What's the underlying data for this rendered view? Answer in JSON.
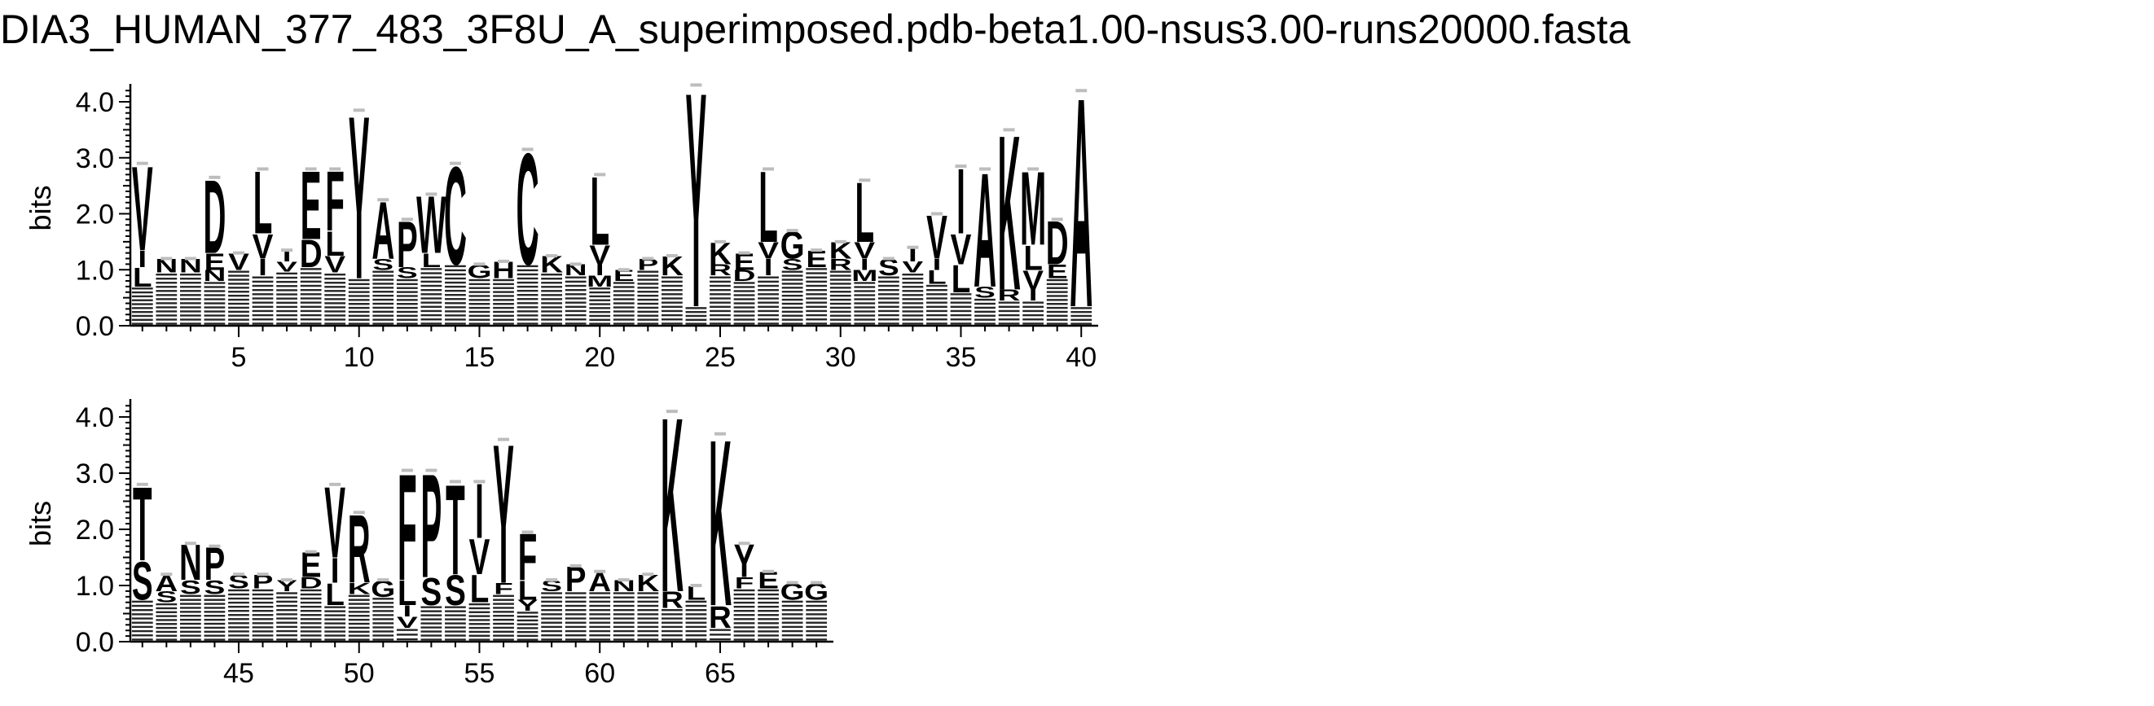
{
  "title": "DIA3_HUMAN_377_483_3F8U_A_superimposed.pdb-beta1.00-nsus3.00-runs20000.fasta",
  "chart_data": {
    "type": "sequence-logo",
    "ylabel": "bits",
    "ylim": [
      0,
      4.32
    ],
    "yticks": [
      "0.0",
      "1.0",
      "2.0",
      "3.0",
      "4.0"
    ],
    "panels": [
      {
        "positions": [
          1,
          40
        ],
        "xticks": [
          5,
          10,
          15,
          20,
          25,
          30,
          35,
          40
        ],
        "columns": [
          {
            "pos": 1,
            "total": 2.9,
            "letters": [
              [
                "V",
                1.55
              ],
              [
                "I",
                0.3
              ],
              [
                "L",
                0.35
              ]
            ]
          },
          {
            "pos": 2,
            "total": 1.2,
            "letters": [
              [
                "N",
                0.25
              ]
            ]
          },
          {
            "pos": 3,
            "total": 1.2,
            "letters": [
              [
                "N",
                0.25
              ]
            ]
          },
          {
            "pos": 4,
            "total": 2.65,
            "letters": [
              [
                "D",
                1.35
              ],
              [
                "E",
                0.3
              ],
              [
                "N",
                0.2
              ]
            ]
          },
          {
            "pos": 5,
            "total": 1.3,
            "letters": [
              [
                "V",
                0.3
              ]
            ]
          },
          {
            "pos": 6,
            "total": 2.8,
            "letters": [
              [
                "L",
                1.15
              ],
              [
                "V",
                0.45
              ],
              [
                "I",
                0.3
              ]
            ]
          },
          {
            "pos": 7,
            "total": 1.35,
            "letters": [
              [
                "I",
                0.2
              ],
              [
                "V",
                0.18
              ]
            ]
          },
          {
            "pos": 8,
            "total": 2.8,
            "letters": [
              [
                "E",
                1.25
              ],
              [
                "D",
                0.5
              ]
            ]
          },
          {
            "pos": 9,
            "total": 2.8,
            "letters": [
              [
                "F",
                1.1
              ],
              [
                "L",
                0.45
              ],
              [
                "V",
                0.3
              ]
            ]
          },
          {
            "pos": 10,
            "total": 3.85,
            "letters": [
              [
                "Y",
                3.0
              ]
            ]
          },
          {
            "pos": 11,
            "total": 2.25,
            "letters": [
              [
                "A",
                1.05
              ],
              [
                "S",
                0.2
              ]
            ]
          },
          {
            "pos": 12,
            "total": 1.9,
            "letters": [
              [
                "P",
                0.85
              ],
              [
                "S",
                0.2
              ]
            ]
          },
          {
            "pos": 13,
            "total": 2.35,
            "letters": [
              [
                "W",
                1.05
              ],
              [
                "L",
                0.25
              ]
            ]
          },
          {
            "pos": 14,
            "total": 2.9,
            "letters": [
              [
                "C",
                1.8
              ]
            ]
          },
          {
            "pos": 15,
            "total": 1.1,
            "letters": [
              [
                "G",
                0.25
              ]
            ]
          },
          {
            "pos": 16,
            "total": 1.15,
            "letters": [
              [
                "H",
                0.3
              ]
            ]
          },
          {
            "pos": 17,
            "total": 3.15,
            "letters": [
              [
                "C",
                2.05
              ]
            ]
          },
          {
            "pos": 18,
            "total": 1.25,
            "letters": [
              [
                "K",
                0.3
              ]
            ]
          },
          {
            "pos": 19,
            "total": 1.1,
            "letters": [
              [
                "N",
                0.2
              ]
            ]
          },
          {
            "pos": 20,
            "total": 2.7,
            "letters": [
              [
                "L",
                1.25
              ],
              [
                "V",
                0.35
              ],
              [
                "I",
                0.2
              ],
              [
                "M",
                0.2
              ]
            ]
          },
          {
            "pos": 21,
            "total": 1.0,
            "letters": [
              [
                "E",
                0.2
              ]
            ]
          },
          {
            "pos": 22,
            "total": 1.2,
            "letters": [
              [
                "P",
                0.2
              ]
            ]
          },
          {
            "pos": 23,
            "total": 1.25,
            "letters": [
              [
                "K",
                0.35
              ]
            ]
          },
          {
            "pos": 24,
            "total": 4.3,
            "letters": [
              [
                "Y",
                3.95
              ]
            ]
          },
          {
            "pos": 25,
            "total": 1.5,
            "letters": [
              [
                "K",
                0.4
              ],
              [
                "R",
                0.2
              ]
            ]
          },
          {
            "pos": 26,
            "total": 1.3,
            "letters": [
              [
                "E",
                0.3
              ],
              [
                "D",
                0.2
              ]
            ]
          },
          {
            "pos": 27,
            "total": 2.8,
            "letters": [
              [
                "L",
                1.3
              ],
              [
                "V",
                0.3
              ],
              [
                "I",
                0.3
              ]
            ]
          },
          {
            "pos": 28,
            "total": 1.7,
            "letters": [
              [
                "G",
                0.5
              ],
              [
                "S",
                0.2
              ]
            ]
          },
          {
            "pos": 29,
            "total": 1.35,
            "letters": [
              [
                "E",
                0.3
              ]
            ]
          },
          {
            "pos": 30,
            "total": 1.5,
            "letters": [
              [
                "K",
                0.3
              ],
              [
                "R",
                0.2
              ]
            ]
          },
          {
            "pos": 31,
            "total": 2.6,
            "letters": [
              [
                "L",
                1.1
              ],
              [
                "V",
                0.3
              ],
              [
                "I",
                0.2
              ],
              [
                "M",
                0.2
              ]
            ]
          },
          {
            "pos": 32,
            "total": 1.2,
            "letters": [
              [
                "S",
                0.3
              ]
            ]
          },
          {
            "pos": 33,
            "total": 1.4,
            "letters": [
              [
                "I",
                0.25
              ],
              [
                "V",
                0.2
              ]
            ]
          },
          {
            "pos": 34,
            "total": 2.0,
            "letters": [
              [
                "V",
                0.8
              ],
              [
                "I",
                0.2
              ],
              [
                "L",
                0.25
              ]
            ]
          },
          {
            "pos": 35,
            "total": 2.85,
            "letters": [
              [
                "I",
                1.2
              ],
              [
                "V",
                0.55
              ],
              [
                "L",
                0.5
              ]
            ]
          },
          {
            "pos": 36,
            "total": 2.8,
            "letters": [
              [
                "A",
                2.1
              ],
              [
                "S",
                0.2
              ]
            ]
          },
          {
            "pos": 37,
            "total": 3.5,
            "letters": [
              [
                "K",
                2.85
              ],
              [
                "R",
                0.2
              ]
            ]
          },
          {
            "pos": 38,
            "total": 2.8,
            "letters": [
              [
                "M",
                1.35
              ],
              [
                "L",
                0.45
              ],
              [
                "V",
                0.35
              ],
              [
                "I",
                0.2
              ]
            ]
          },
          {
            "pos": 39,
            "total": 1.9,
            "letters": [
              [
                "D",
                0.8
              ],
              [
                "E",
                0.25
              ]
            ]
          },
          {
            "pos": 40,
            "total": 4.2,
            "letters": [
              [
                "A",
                3.85
              ]
            ]
          }
        ]
      },
      {
        "positions": [
          41,
          69
        ],
        "xticks": [
          45,
          50,
          55,
          60,
          65
        ],
        "columns": [
          {
            "pos": 41,
            "total": 2.8,
            "letters": [
              [
                "T",
                1.35
              ],
              [
                "S",
                0.7
              ]
            ]
          },
          {
            "pos": 42,
            "total": 1.2,
            "letters": [
              [
                "A",
                0.3
              ],
              [
                "S",
                0.2
              ]
            ]
          },
          {
            "pos": 43,
            "total": 1.75,
            "letters": [
              [
                "N",
                0.65
              ],
              [
                "S",
                0.25
              ]
            ]
          },
          {
            "pos": 44,
            "total": 1.7,
            "letters": [
              [
                "P",
                0.6
              ],
              [
                "S",
                0.25
              ]
            ]
          },
          {
            "pos": 45,
            "total": 1.2,
            "letters": [
              [
                "S",
                0.25
              ]
            ]
          },
          {
            "pos": 46,
            "total": 1.2,
            "letters": [
              [
                "P",
                0.25
              ]
            ]
          },
          {
            "pos": 47,
            "total": 1.1,
            "letters": [
              [
                "Y",
                0.2
              ]
            ]
          },
          {
            "pos": 48,
            "total": 1.6,
            "letters": [
              [
                "E",
                0.45
              ],
              [
                "D",
                0.2
              ]
            ]
          },
          {
            "pos": 49,
            "total": 2.8,
            "letters": [
              [
                "V",
                1.3
              ],
              [
                "I",
                0.45
              ],
              [
                "L",
                0.4
              ]
            ]
          },
          {
            "pos": 50,
            "total": 2.3,
            "letters": [
              [
                "R",
                1.25
              ],
              [
                "K",
                0.2
              ]
            ]
          },
          {
            "pos": 51,
            "total": 1.1,
            "letters": [
              [
                "G",
                0.3
              ]
            ]
          },
          {
            "pos": 52,
            "total": 3.05,
            "letters": [
              [
                "F",
                1.95
              ],
              [
                "L",
                0.45
              ],
              [
                "I",
                0.2
              ],
              [
                "V",
                0.2
              ]
            ]
          },
          {
            "pos": 53,
            "total": 3.05,
            "letters": [
              [
                "P",
                1.9
              ],
              [
                "S",
                0.5
              ]
            ]
          },
          {
            "pos": 54,
            "total": 2.85,
            "letters": [
              [
                "T",
                1.65
              ],
              [
                "S",
                0.55
              ]
            ]
          },
          {
            "pos": 55,
            "total": 2.85,
            "letters": [
              [
                "I",
                1.0
              ],
              [
                "V",
                0.65
              ],
              [
                "L",
                0.5
              ]
            ]
          },
          {
            "pos": 56,
            "total": 3.6,
            "letters": [
              [
                "Y",
                2.55
              ],
              [
                "F",
                0.2
              ]
            ]
          },
          {
            "pos": 57,
            "total": 1.95,
            "letters": [
              [
                "F",
                0.85
              ],
              [
                "L",
                0.35
              ],
              [
                "Y",
                0.2
              ]
            ]
          },
          {
            "pos": 58,
            "total": 1.1,
            "letters": [
              [
                "S",
                0.2
              ]
            ]
          },
          {
            "pos": 59,
            "total": 1.35,
            "letters": [
              [
                "P",
                0.45
              ]
            ]
          },
          {
            "pos": 60,
            "total": 1.25,
            "letters": [
              [
                "A",
                0.35
              ]
            ]
          },
          {
            "pos": 61,
            "total": 1.1,
            "letters": [
              [
                "N",
                0.2
              ]
            ]
          },
          {
            "pos": 62,
            "total": 1.2,
            "letters": [
              [
                "K",
                0.3
              ]
            ]
          },
          {
            "pos": 63,
            "total": 4.1,
            "letters": [
              [
                "K",
                3.2
              ],
              [
                "R",
                0.3
              ]
            ]
          },
          {
            "pos": 64,
            "total": 1.0,
            "letters": [
              [
                "L",
                0.25
              ]
            ]
          },
          {
            "pos": 65,
            "total": 3.7,
            "letters": [
              [
                "K",
                3.05
              ],
              [
                "R",
                0.4
              ]
            ]
          },
          {
            "pos": 66,
            "total": 1.75,
            "letters": [
              [
                "Y",
                0.6
              ],
              [
                "F",
                0.2
              ]
            ]
          },
          {
            "pos": 67,
            "total": 1.25,
            "letters": [
              [
                "E",
                0.3
              ]
            ]
          },
          {
            "pos": 68,
            "total": 1.05,
            "letters": [
              [
                "G",
                0.3
              ]
            ]
          },
          {
            "pos": 69,
            "total": 1.05,
            "letters": [
              [
                "G",
                0.3
              ]
            ]
          }
        ]
      }
    ]
  }
}
